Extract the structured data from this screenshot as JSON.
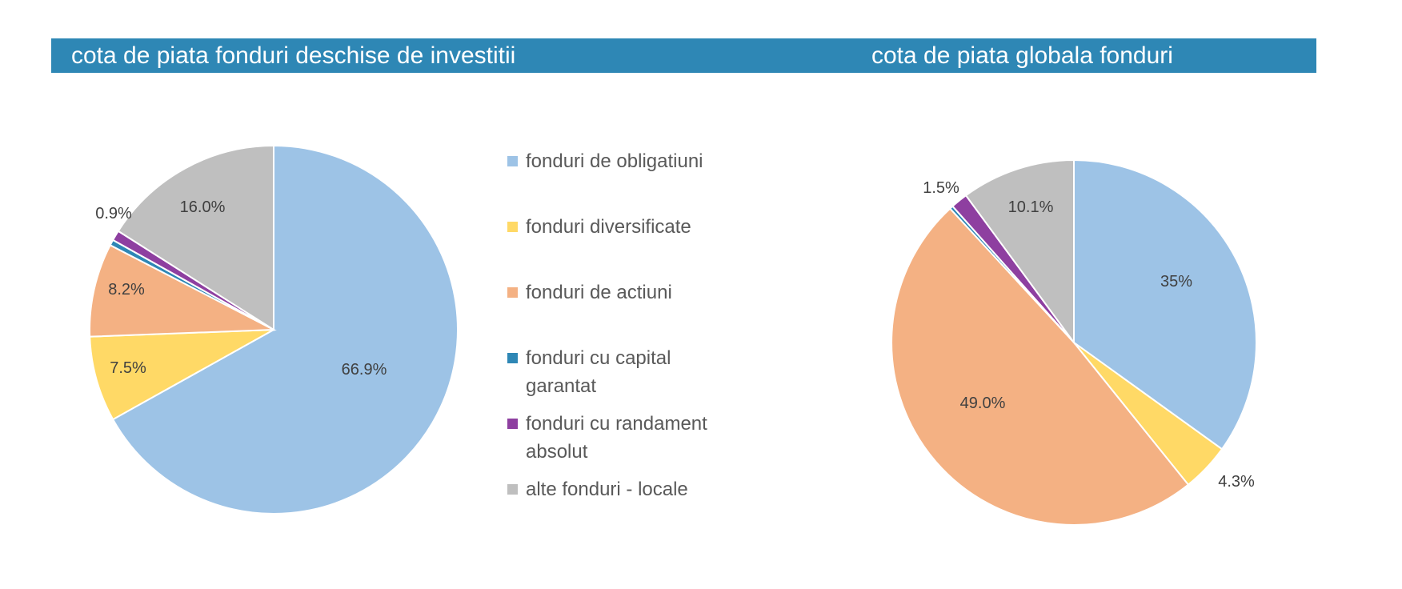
{
  "header": {
    "left_title": "cota de piata fonduri deschise de investitii",
    "right_title": "cota de piata globala fonduri"
  },
  "legend": {
    "items": [
      {
        "label": "fonduri de obligatiuni",
        "color": "#9dc3e6"
      },
      {
        "label": "fonduri diversificate",
        "color": "#ffd966"
      },
      {
        "label": "fonduri de actiuni",
        "color": "#f4b183"
      },
      {
        "label": "fonduri cu capital garantat",
        "color": "#2e87b5"
      },
      {
        "label": "fonduri cu randament absolut",
        "color": "#8e3fa0"
      },
      {
        "label": "alte fonduri - locale",
        "color": "#bfbfbf"
      }
    ]
  },
  "chart_data": [
    {
      "type": "pie",
      "title": "cota de piata fonduri deschise de investitii",
      "categories": [
        "fonduri de obligatiuni",
        "fonduri diversificate",
        "fonduri de actiuni",
        "fonduri cu capital garantat",
        "fonduri cu randament absolut",
        "alte fonduri - locale"
      ],
      "values": [
        66.9,
        7.5,
        8.2,
        0.5,
        0.9,
        16.0
      ],
      "labels": [
        "66.9%",
        "7.5%",
        "8.2%",
        "",
        "0.9%",
        "16.0%"
      ],
      "colors": [
        "#9dc3e6",
        "#ffd966",
        "#f4b183",
        "#2e87b5",
        "#8e3fa0",
        "#bfbfbf"
      ],
      "start": "top",
      "direction": "clockwise"
    },
    {
      "type": "pie",
      "title": "cota de piata globala fonduri",
      "categories": [
        "fonduri de obligatiuni",
        "fonduri diversificate",
        "fonduri de actiuni",
        "fonduri cu capital garantat",
        "fonduri cu randament absolut",
        "alte fonduri - locale"
      ],
      "values": [
        35,
        4.3,
        49.0,
        0.3,
        1.5,
        10.1
      ],
      "labels": [
        "35%",
        "4.3%",
        "49.0%",
        "",
        "1.5%",
        "10.1%"
      ],
      "colors": [
        "#9dc3e6",
        "#ffd966",
        "#f4b183",
        "#2e87b5",
        "#8e3fa0",
        "#bfbfbf"
      ],
      "start": "top",
      "direction": "clockwise"
    }
  ]
}
